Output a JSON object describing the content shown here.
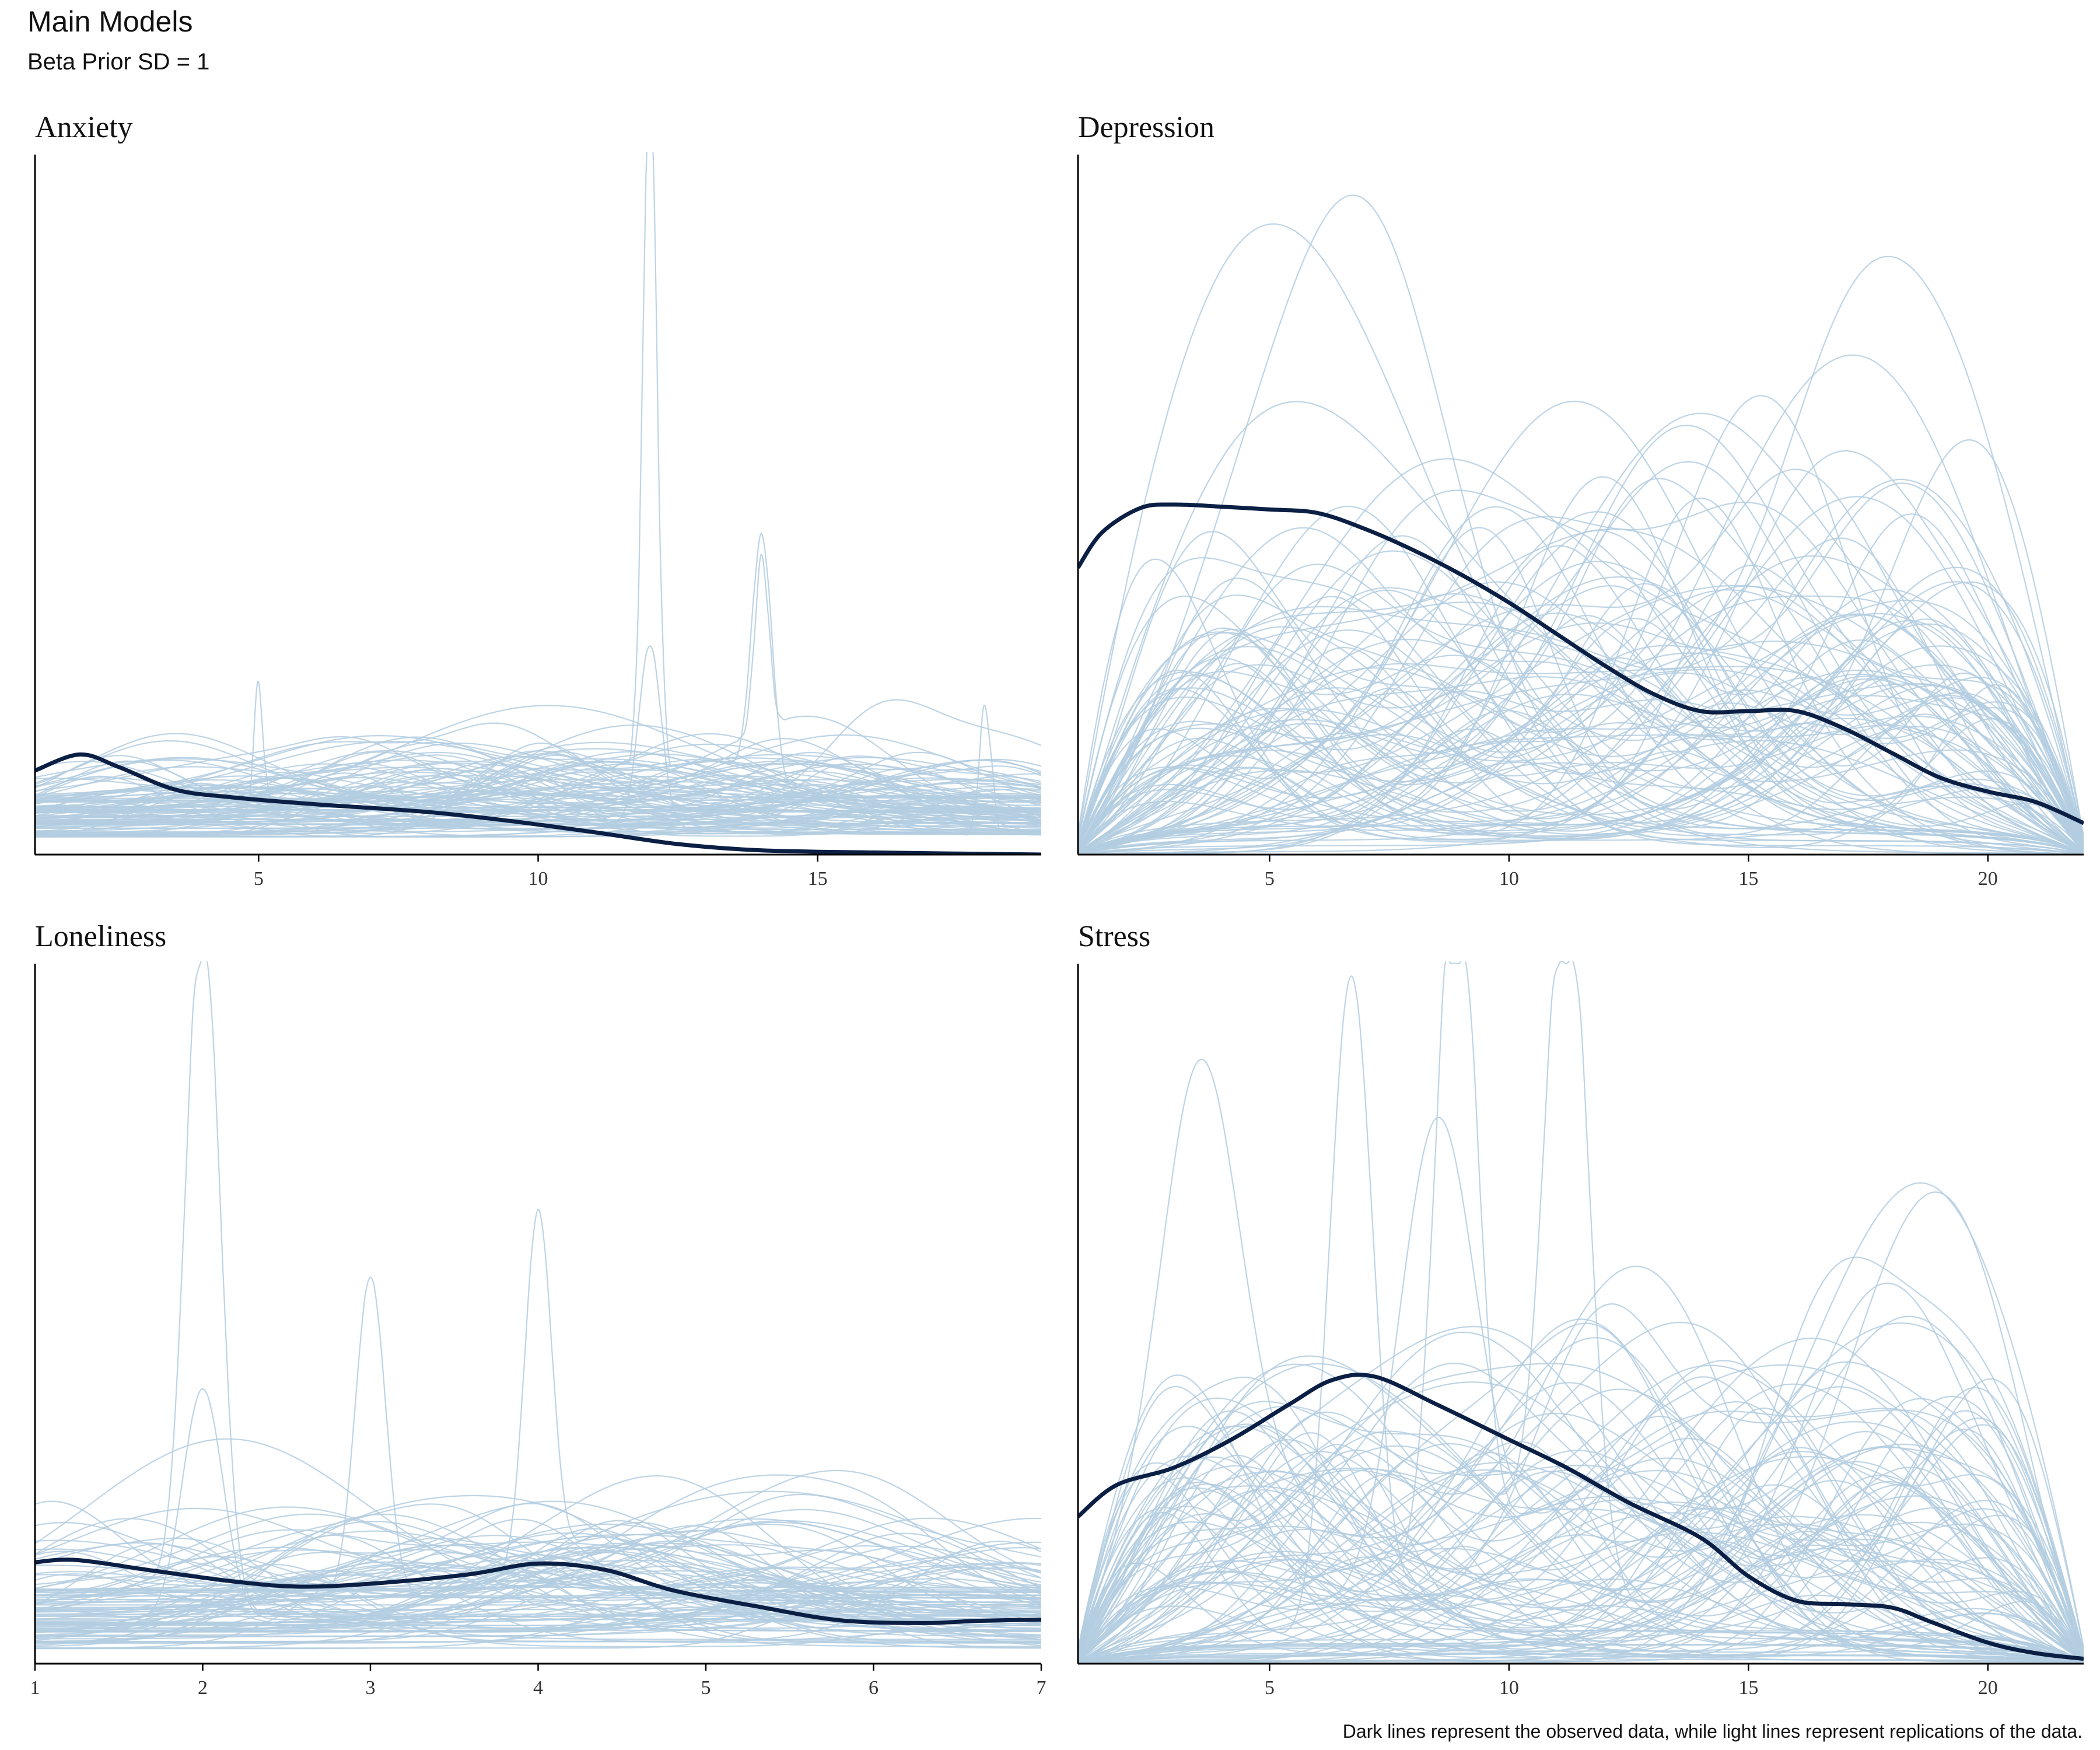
{
  "title": "Main Models",
  "subtitle": "Beta Prior SD = 1",
  "caption": "Dark lines represent the observed data, while light lines represent replications of the data.",
  "colors": {
    "observed": "#0b1f44",
    "replicated": "#b3cde0",
    "axis": "#000000",
    "tick_text": "#333333"
  },
  "chart_data": [
    {
      "type": "line",
      "title": "Anxiety",
      "xlim": [
        1,
        19
      ],
      "ylim": [
        0,
        1
      ],
      "xticks": [
        5,
        10,
        15
      ],
      "grid": false,
      "series": [
        {
          "name": "observed",
          "x": [
            1,
            1.8,
            2.5,
            3.5,
            4.5,
            6,
            8,
            9.5,
            11,
            12.5,
            14,
            16,
            19
          ],
          "y": [
            0.12,
            0.143,
            0.125,
            0.093,
            0.082,
            0.072,
            0.061,
            0.048,
            0.032,
            0.015,
            0.006,
            0.003,
            0.0
          ]
        }
      ],
      "replications": {
        "count": 100,
        "seed": 11,
        "mean_peaks": 2.4,
        "base": [
          0.025,
          0.085
        ],
        "peak_height": [
          0.015,
          0.09
        ],
        "peak_width": [
          0.8,
          2.6
        ],
        "boundary_decay": 0.0,
        "spikes": [
          {
            "x": 12,
            "h": 1.0,
            "w": 0.12
          },
          {
            "x": 14,
            "h": 0.35,
            "w": 0.18
          },
          {
            "x": 12,
            "h": 0.26,
            "w": 0.2
          },
          {
            "x": 14,
            "h": 0.25,
            "w": 0.12
          },
          {
            "x": 5,
            "h": 0.19,
            "w": 0.08
          },
          {
            "x": 18,
            "h": 0.19,
            "w": 0.1
          }
        ]
      }
    },
    {
      "type": "line",
      "title": "Depression",
      "xlim": [
        1,
        22
      ],
      "ylim": [
        0,
        1
      ],
      "xticks": [
        5,
        10,
        15,
        20
      ],
      "grid": false,
      "series": [
        {
          "name": "observed",
          "x": [
            1,
            1.5,
            2.3,
            3,
            4,
            5,
            6,
            7,
            8,
            9,
            10,
            11,
            12,
            13,
            14,
            15,
            16,
            17,
            18,
            19,
            20,
            21,
            22
          ],
          "y": [
            0.41,
            0.46,
            0.495,
            0.5,
            0.497,
            0.493,
            0.488,
            0.465,
            0.435,
            0.4,
            0.36,
            0.315,
            0.27,
            0.23,
            0.205,
            0.205,
            0.205,
            0.18,
            0.145,
            0.11,
            0.09,
            0.075,
            0.045
          ]
        }
      ],
      "replications": {
        "count": 100,
        "seed": 23,
        "mean_peaks": 3.2,
        "base": [
          0.0,
          0.05
        ],
        "peak_height": [
          0.08,
          0.33
        ],
        "peak_width": [
          1.3,
          3.5
        ],
        "boundary_decay": 1.6,
        "spikes": []
      }
    },
    {
      "type": "line",
      "title": "Loneliness",
      "xlim": [
        1,
        7
      ],
      "ylim": [
        0,
        1
      ],
      "xticks": [
        1,
        2,
        3,
        4,
        5,
        6,
        7
      ],
      "grid": false,
      "series": [
        {
          "name": "observed",
          "x": [
            1,
            1.25,
            1.7,
            2.2,
            2.6,
            3.1,
            3.6,
            4.0,
            4.4,
            4.8,
            5.3,
            5.8,
            6.3,
            6.6,
            7.0
          ],
          "y": [
            0.145,
            0.148,
            0.133,
            0.117,
            0.11,
            0.116,
            0.128,
            0.143,
            0.134,
            0.105,
            0.082,
            0.062,
            0.058,
            0.061,
            0.063
          ]
        }
      ],
      "replications": {
        "count": 100,
        "seed": 37,
        "mean_peaks": 2.0,
        "base": [
          0.02,
          0.11
        ],
        "peak_height": [
          0.02,
          0.12
        ],
        "peak_width": [
          0.35,
          0.9
        ],
        "boundary_decay": 0.0,
        "spikes": [
          {
            "x": 2,
            "h": 1.0,
            "w": 0.1
          },
          {
            "x": 3,
            "h": 0.46,
            "w": 0.09
          },
          {
            "x": 4,
            "h": 0.51,
            "w": 0.08
          },
          {
            "x": 2,
            "h": 0.33,
            "w": 0.12
          }
        ]
      }
    },
    {
      "type": "line",
      "title": "Stress",
      "xlim": [
        1,
        22
      ],
      "ylim": [
        0,
        1
      ],
      "xticks": [
        5,
        10,
        15,
        20
      ],
      "grid": false,
      "series": [
        {
          "name": "observed",
          "x": [
            1,
            1.8,
            3,
            4.2,
            5.4,
            6.3,
            7.2,
            8.5,
            10,
            11.2,
            12.5,
            14,
            15,
            16,
            17,
            18,
            18.8,
            20,
            21,
            22
          ],
          "y": [
            0.21,
            0.255,
            0.28,
            0.32,
            0.37,
            0.405,
            0.41,
            0.37,
            0.32,
            0.28,
            0.23,
            0.18,
            0.125,
            0.09,
            0.085,
            0.08,
            0.06,
            0.03,
            0.015,
            0.007
          ]
        }
      ],
      "replications": {
        "count": 100,
        "seed": 53,
        "mean_peaks": 3.0,
        "base": [
          0.0,
          0.05
        ],
        "peak_height": [
          0.08,
          0.3
        ],
        "peak_width": [
          1.2,
          3.2
        ],
        "boundary_decay": 1.6,
        "spikes": [
          {
            "x": 6.7,
            "h": 0.95,
            "w": 0.45
          },
          {
            "x": 8.9,
            "h": 1.0,
            "w": 0.42
          },
          {
            "x": 11.2,
            "h": 0.99,
            "w": 0.45
          },
          {
            "x": 3.5,
            "h": 0.64,
            "w": 0.8
          },
          {
            "x": 8.5,
            "h": 0.68,
            "w": 0.8
          }
        ]
      }
    }
  ]
}
